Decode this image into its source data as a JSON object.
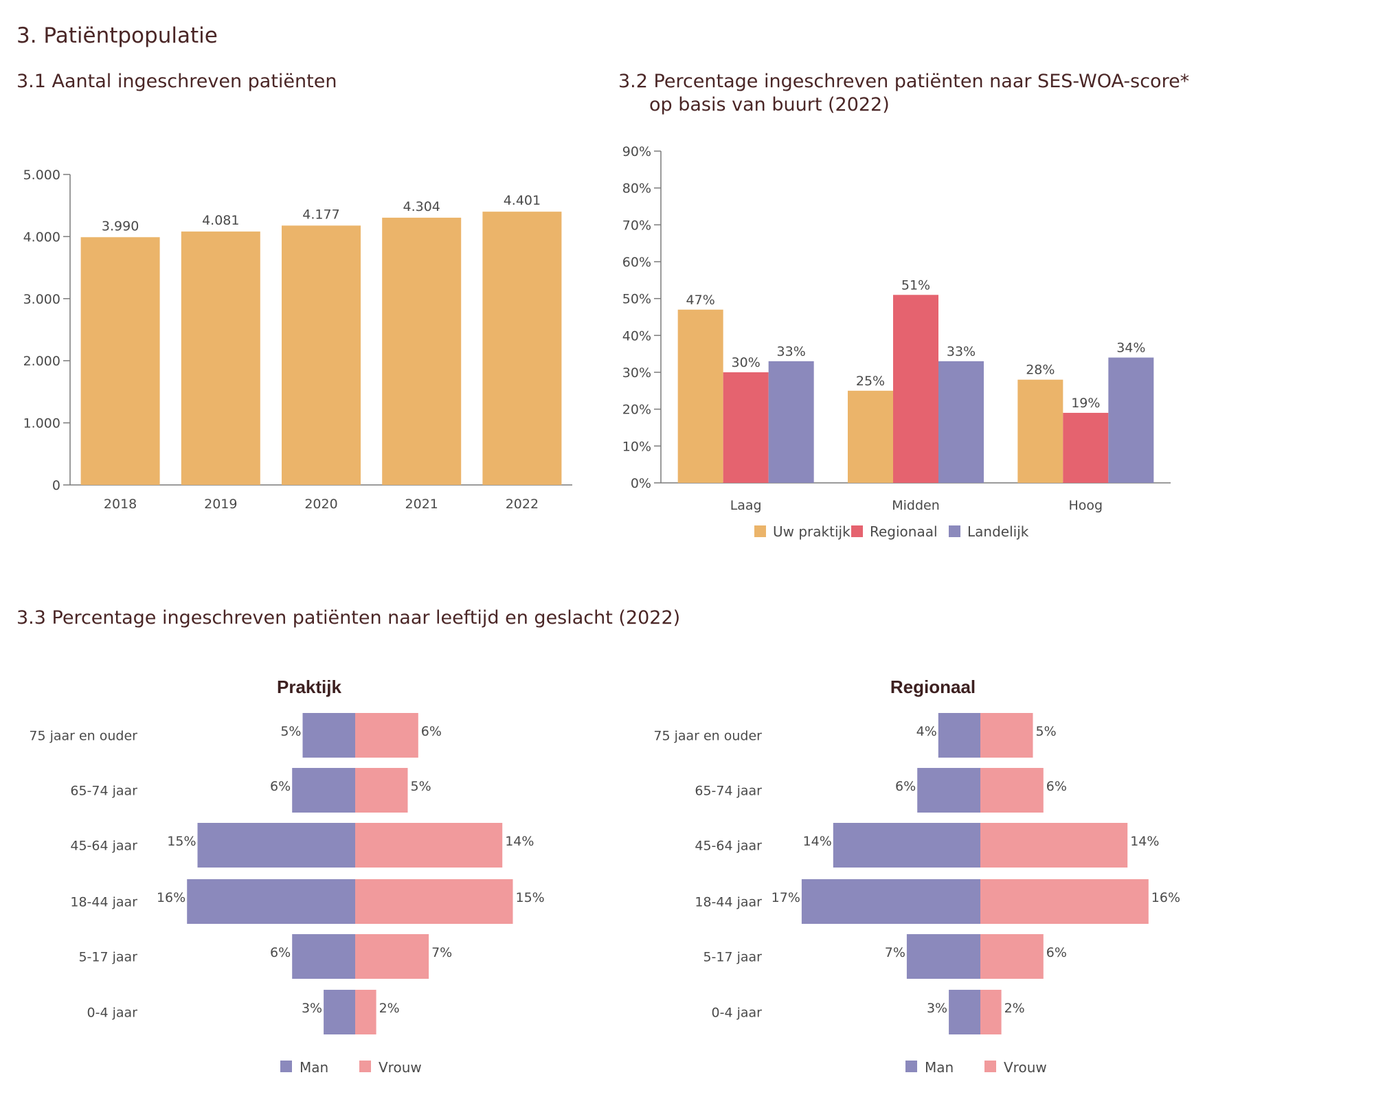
{
  "page": {
    "title": "3. Patiëntpopulatie"
  },
  "colors": {
    "text_dark": "#4a2626",
    "axis": "#7a7a7a",
    "orange": "#EBB46A",
    "red": "#E5636F",
    "purple": "#8B89BC",
    "man": "#8B89BC",
    "vrouw": "#F19A9C"
  },
  "section_31": {
    "title": "3.1 Aantal ingeschreven patiënten"
  },
  "section_32": {
    "title_line1": "3.2 Percentage ingeschreven patiënten naar SES-WOA-score*",
    "title_line2": "op basis van buurt (2022)"
  },
  "section_33": {
    "title": "3.3 Percentage ingeschreven patiënten naar leeftijd en geslacht (2022)"
  },
  "chart_data": [
    {
      "id": "patients_per_year",
      "type": "bar",
      "categories": [
        "2018",
        "2019",
        "2020",
        "2021",
        "2022"
      ],
      "values": [
        3990,
        4081,
        4177,
        4304,
        4401
      ],
      "value_labels": [
        "3.990",
        "4.081",
        "4.177",
        "4.304",
        "4.401"
      ],
      "ylim": [
        0,
        5000
      ],
      "yticks": [
        0,
        1000,
        2000,
        3000,
        4000,
        5000
      ],
      "ytick_labels": [
        "0",
        "1.000",
        "2.000",
        "3.000",
        "4.000",
        "5.000"
      ],
      "grid": false,
      "legend": "none"
    },
    {
      "id": "ses_woa",
      "type": "bar",
      "categories": [
        "Laag",
        "Midden",
        "Hoog"
      ],
      "series": [
        {
          "name": "Uw praktijk",
          "values": [
            47,
            25,
            28
          ],
          "color": "#EBB46A"
        },
        {
          "name": "Regionaal",
          "values": [
            30,
            51,
            19
          ],
          "color": "#E5636F"
        },
        {
          "name": "Landelijk",
          "values": [
            33,
            33,
            34
          ],
          "color": "#8B89BC"
        }
      ],
      "value_suffix": "%",
      "ylim": [
        0,
        90
      ],
      "yticks": [
        0,
        10,
        20,
        30,
        40,
        50,
        60,
        70,
        80,
        90
      ],
      "ytick_labels": [
        "0%",
        "10%",
        "20%",
        "30%",
        "40%",
        "50%",
        "60%",
        "70%",
        "80%",
        "90%"
      ],
      "grid": false,
      "legend": "bottom"
    },
    {
      "id": "pyramid_praktijk",
      "type": "bar",
      "orientation": "horizontal-population-pyramid",
      "title": "Praktijk",
      "categories": [
        "75 jaar en ouder",
        "65-74 jaar",
        "45-64 jaar",
        "18-44 jaar",
        "5-17 jaar",
        "0-4 jaar"
      ],
      "series": [
        {
          "name": "Man",
          "values": [
            5,
            6,
            15,
            16,
            6,
            3
          ],
          "color": "#8B89BC"
        },
        {
          "name": "Vrouw",
          "values": [
            6,
            5,
            14,
            15,
            7,
            2
          ],
          "color": "#F19A9C"
        }
      ],
      "value_suffix": "%",
      "legend": "bottom"
    },
    {
      "id": "pyramid_regionaal",
      "type": "bar",
      "orientation": "horizontal-population-pyramid",
      "title": "Regionaal",
      "categories": [
        "75 jaar en ouder",
        "65-74 jaar",
        "45-64 jaar",
        "18-44 jaar",
        "5-17 jaar",
        "0-4 jaar"
      ],
      "series": [
        {
          "name": "Man",
          "values": [
            4,
            6,
            14,
            17,
            7,
            3
          ],
          "color": "#8B89BC"
        },
        {
          "name": "Vrouw",
          "values": [
            5,
            6,
            14,
            16,
            6,
            2
          ],
          "color": "#F19A9C"
        }
      ],
      "value_suffix": "%",
      "legend": "bottom"
    }
  ]
}
